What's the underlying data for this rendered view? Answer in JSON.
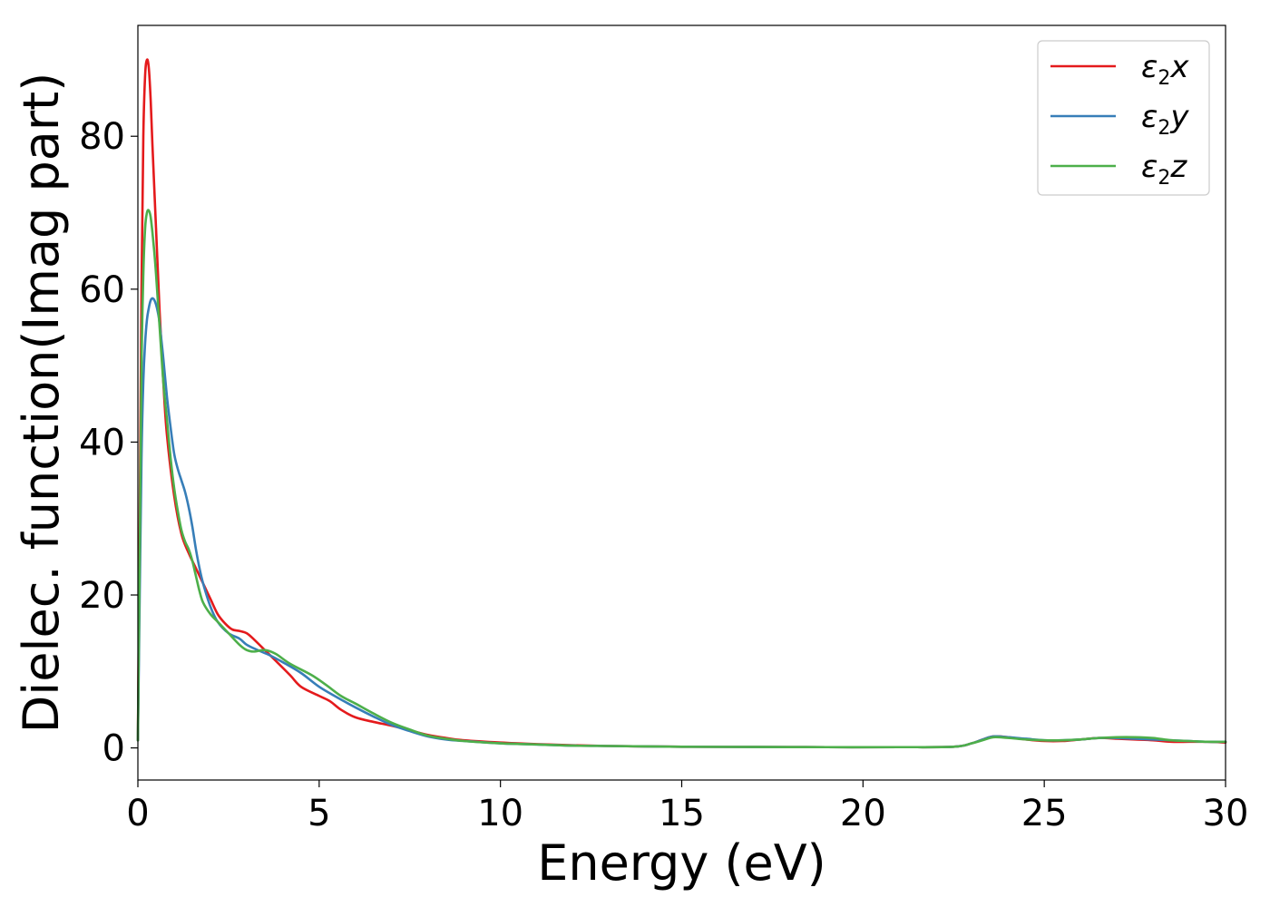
{
  "chart_data": {
    "type": "line",
    "title": "",
    "xlabel": "Energy (eV)",
    "ylabel": "Dielec. function(Imag part)",
    "xlim": [
      0,
      30
    ],
    "ylim": [
      -4.2,
      94.5
    ],
    "xticks": [
      0,
      5,
      10,
      15,
      20,
      25,
      30
    ],
    "yticks": [
      0,
      20,
      40,
      60,
      80
    ],
    "xtick_labels": [
      "0",
      "5",
      "10",
      "15",
      "20",
      "25",
      "30"
    ],
    "ytick_labels": [
      "0",
      "20",
      "40",
      "60",
      "80"
    ],
    "grid": false,
    "legend_position": "top-right",
    "legend": [
      {
        "base": "ε",
        "sub": "2",
        "comp": "x",
        "color": "#e41a1c"
      },
      {
        "base": "ε",
        "sub": "2",
        "comp": "y",
        "color": "#377eb8"
      },
      {
        "base": "ε",
        "sub": "2",
        "comp": "z",
        "color": "#4daf4a"
      }
    ],
    "series": [
      {
        "name": "ε2x",
        "color": "#e41a1c",
        "x": [
          0,
          0.05,
          0.1,
          0.15,
          0.2,
          0.25,
          0.3,
          0.35,
          0.4,
          0.5,
          0.6,
          0.7,
          0.8,
          1.0,
          1.2,
          1.4,
          1.6,
          1.8,
          2.0,
          2.2,
          2.4,
          2.6,
          2.8,
          3.0,
          3.2,
          3.5,
          3.8,
          4.2,
          4.5,
          5.0,
          5.3,
          5.6,
          6.0,
          6.5,
          7.0,
          7.5,
          8.0,
          8.5,
          9.0,
          10.0,
          11.0,
          12.0,
          13.0,
          14.0,
          15.0,
          17.0,
          19.0,
          21.0,
          22.5,
          23.0,
          23.3,
          23.6,
          24.0,
          24.5,
          25.0,
          25.5,
          26.0,
          26.5,
          27.0,
          27.5,
          28.0,
          28.5,
          29.0,
          29.5,
          30.0
        ],
        "values": [
          1,
          30,
          60,
          80,
          88,
          90,
          89,
          85,
          79,
          68,
          57,
          48,
          41,
          33,
          28,
          25.5,
          23.5,
          21.5,
          19.5,
          17.5,
          16.3,
          15.5,
          15.3,
          15.0,
          14.2,
          12.8,
          11.4,
          9.5,
          8.0,
          6.8,
          6.1,
          5.0,
          4.0,
          3.4,
          2.9,
          2.3,
          1.7,
          1.3,
          1.0,
          0.7,
          0.5,
          0.35,
          0.25,
          0.2,
          0.15,
          0.12,
          0.1,
          0.1,
          0.15,
          0.6,
          1.1,
          1.5,
          1.4,
          1.1,
          0.9,
          0.9,
          1.1,
          1.3,
          1.2,
          1.1,
          1.0,
          0.8,
          0.8,
          0.8,
          0.7
        ]
      },
      {
        "name": "ε2y",
        "color": "#377eb8",
        "x": [
          0,
          0.05,
          0.1,
          0.15,
          0.2,
          0.25,
          0.3,
          0.35,
          0.4,
          0.45,
          0.5,
          0.55,
          0.6,
          0.7,
          0.8,
          0.9,
          1.0,
          1.1,
          1.2,
          1.3,
          1.4,
          1.5,
          1.6,
          1.7,
          1.8,
          2.0,
          2.2,
          2.5,
          2.8,
          3.0,
          3.3,
          3.6,
          4.0,
          4.5,
          5.0,
          5.5,
          6.0,
          6.5,
          7.0,
          7.5,
          8.0,
          8.5,
          9.0,
          10.0,
          11.0,
          12.0,
          13.0,
          14.0,
          15.0,
          17.0,
          19.0,
          21.0,
          22.5,
          23.0,
          23.3,
          23.6,
          24.0,
          24.5,
          25.0,
          25.5,
          26.0,
          26.5,
          27.0,
          27.5,
          28.0,
          28.5,
          29.0,
          29.5,
          30.0
        ],
        "values": [
          1,
          20,
          38,
          48,
          53,
          56,
          57.5,
          58.5,
          58.8,
          58.6,
          58,
          57,
          55.5,
          51,
          46,
          42,
          38.5,
          36.5,
          35,
          33.5,
          31.5,
          29,
          26,
          23.5,
          21.5,
          18.5,
          16.5,
          15,
          14.3,
          13.5,
          12.8,
          12.2,
          11.2,
          9.8,
          8.0,
          6.6,
          5.3,
          4.1,
          3.0,
          2.2,
          1.5,
          1.1,
          0.9,
          0.6,
          0.45,
          0.3,
          0.25,
          0.2,
          0.15,
          0.12,
          0.1,
          0.1,
          0.15,
          0.6,
          1.1,
          1.5,
          1.4,
          1.2,
          1.0,
          1.0,
          1.1,
          1.3,
          1.3,
          1.2,
          1.1,
          1.0,
          0.9,
          0.8,
          0.8
        ]
      },
      {
        "name": "ε2z",
        "color": "#4daf4a",
        "x": [
          0,
          0.05,
          0.1,
          0.15,
          0.2,
          0.25,
          0.3,
          0.35,
          0.4,
          0.45,
          0.5,
          0.6,
          0.7,
          0.8,
          0.9,
          1.0,
          1.1,
          1.2,
          1.3,
          1.4,
          1.5,
          1.6,
          1.7,
          1.8,
          2.0,
          2.2,
          2.5,
          2.8,
          3.0,
          3.2,
          3.5,
          3.8,
          4.2,
          4.8,
          5.2,
          5.6,
          6.0,
          6.5,
          7.0,
          7.5,
          8.0,
          8.5,
          9.0,
          10.0,
          11.0,
          12.0,
          13.0,
          14.0,
          15.0,
          17.0,
          19.0,
          21.0,
          22.5,
          23.0,
          23.3,
          23.6,
          24.0,
          24.5,
          25.0,
          25.5,
          26.0,
          26.5,
          27.0,
          27.5,
          28.0,
          28.5,
          29.0,
          29.5,
          30.0
        ],
        "values": [
          1,
          25,
          50,
          62,
          68,
          70,
          70.3,
          69.5,
          67.5,
          65,
          62,
          55,
          48,
          43,
          38,
          34,
          31,
          28.5,
          27,
          26,
          24.5,
          22.5,
          20.5,
          19,
          17.5,
          16.5,
          15,
          13.5,
          12.8,
          12.6,
          12.8,
          12.3,
          11.0,
          9.5,
          8.2,
          6.8,
          5.8,
          4.5,
          3.3,
          2.4,
          1.6,
          1.2,
          0.9,
          0.6,
          0.45,
          0.3,
          0.25,
          0.2,
          0.15,
          0.12,
          0.1,
          0.1,
          0.15,
          0.6,
          1.0,
          1.4,
          1.3,
          1.1,
          1.0,
          1.0,
          1.1,
          1.3,
          1.4,
          1.4,
          1.3,
          1.0,
          0.9,
          0.8,
          0.8
        ]
      }
    ]
  }
}
